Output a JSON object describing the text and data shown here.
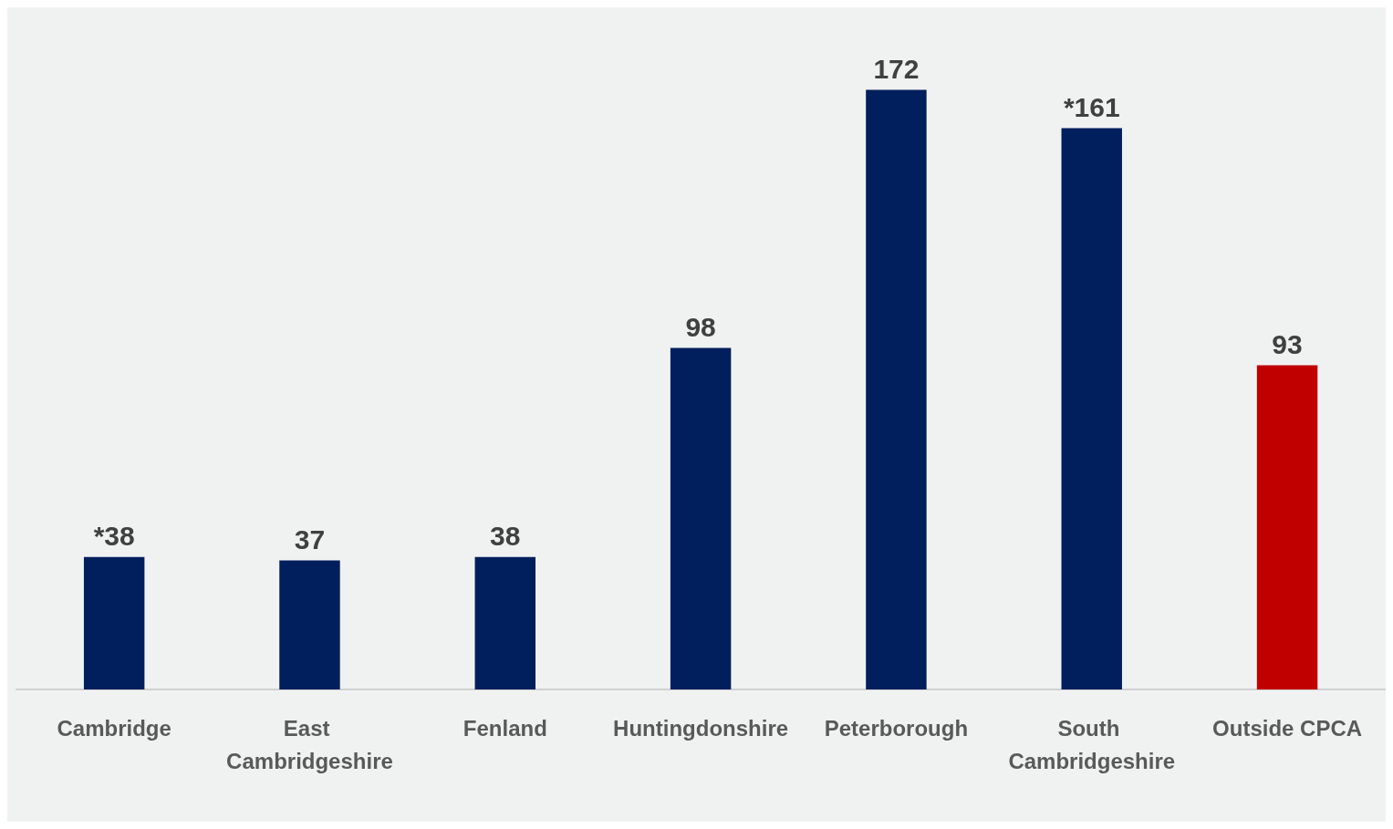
{
  "chart_data": {
    "type": "bar",
    "categories": [
      "Cambridge",
      "East Cambridgeshire",
      "Fenland",
      "Huntingdonshire",
      "Peterborough",
      "South Cambridgeshire",
      "Outside CPCA"
    ],
    "values": [
      38,
      37,
      38,
      98,
      172,
      161,
      93
    ],
    "colors": [
      "#001f5c",
      "#001f5c",
      "#001f5c",
      "#001f5c",
      "#001f5c",
      "#001f5c",
      "#c00000"
    ],
    "value_labels": [
      "*38",
      "37",
      "38",
      "98",
      "172",
      "*161",
      "93"
    ]
  }
}
